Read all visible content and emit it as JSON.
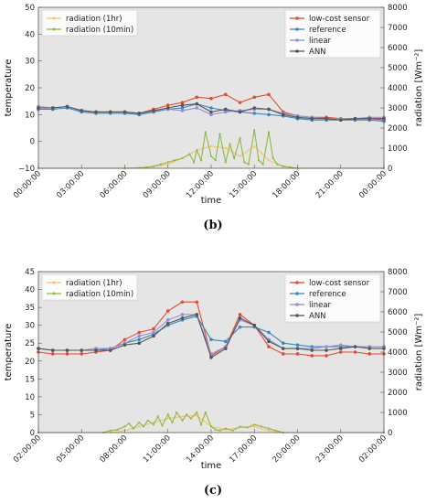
{
  "colors": {
    "low_cost_sensor": "#e24a33",
    "reference": "#348abd",
    "linear": "#988ed5",
    "ann": "#555555",
    "radiation_1hr": "#fbc15e",
    "radiation_10min": "#8eba42"
  },
  "chart_data": [
    {
      "type": "line",
      "caption": "(b)",
      "xlabel": "time",
      "ylabel": "temperature",
      "ylabel_right": "radiation [Wm⁻²]",
      "xlim": [
        0,
        24
      ],
      "ylim": [
        -10,
        50
      ],
      "ylim_right": [
        0,
        8000
      ],
      "x_ticks": [
        0,
        3,
        6,
        9,
        12,
        15,
        18,
        21,
        24
      ],
      "x_tick_labels": [
        "00:00:00",
        "03:00:00",
        "06:00:00",
        "09:00:00",
        "12:00:00",
        "15:00:00",
        "18:00:00",
        "21:00:00",
        "00:00:00"
      ],
      "y_ticks": [
        -10,
        0,
        10,
        20,
        30,
        40,
        50
      ],
      "y_tick_labels": [
        "−10",
        "0",
        "10",
        "20",
        "30",
        "40",
        "50"
      ],
      "y_ticks_right": [
        0,
        1000,
        2000,
        3000,
        4000,
        5000,
        6000,
        7000,
        8000
      ],
      "y_tick_labels_right": [
        "0",
        "1000",
        "2000",
        "3000",
        "4000",
        "5000",
        "6000",
        "7000",
        "8000"
      ],
      "legend_left": [
        "radiation (1hr)",
        "radiation (10min)"
      ],
      "legend_right": [
        "low-cost sensor",
        "reference",
        "linear",
        "ANN"
      ],
      "x": [
        0,
        1,
        2,
        3,
        4,
        5,
        6,
        7,
        8,
        9,
        10,
        11,
        12,
        13,
        14,
        15,
        16,
        17,
        18,
        19,
        20,
        21,
        22,
        23,
        24
      ],
      "series": [
        {
          "name": "low-cost sensor",
          "key": "low_cost_sensor",
          "values": [
            12.5,
            12.5,
            13,
            11.5,
            11,
            11,
            11,
            10.5,
            12,
            13.5,
            14.5,
            16.5,
            16,
            17.5,
            14.5,
            16.5,
            17.5,
            11,
            9.5,
            9,
            9,
            8.5,
            8.5,
            8.5,
            8
          ]
        },
        {
          "name": "reference",
          "key": "reference",
          "values": [
            12,
            12,
            12.5,
            11,
            10.5,
            10.5,
            10.5,
            10,
            11,
            12,
            12.5,
            14,
            12.5,
            11.5,
            11,
            10.5,
            10,
            9.5,
            8.5,
            8,
            8,
            8,
            8,
            8,
            7.5
          ]
        },
        {
          "name": "linear",
          "key": "linear",
          "values": [
            13,
            12.5,
            13,
            11.5,
            11,
            11,
            11,
            10.5,
            11.5,
            12,
            11.5,
            12.5,
            10,
            11,
            11.5,
            12,
            12,
            10.5,
            9.5,
            9,
            8.5,
            8.5,
            8.5,
            9,
            9
          ]
        },
        {
          "name": "ANN",
          "key": "ann",
          "values": [
            12.5,
            12.5,
            13,
            11.5,
            11,
            11,
            11,
            10.5,
            11.5,
            12.5,
            13.5,
            14,
            11,
            12,
            11,
            12.5,
            12,
            10,
            9,
            8.5,
            8.5,
            8,
            8.5,
            8.5,
            8.5
          ]
        }
      ],
      "radiation_1hr": {
        "x": [
          0,
          6,
          7,
          8,
          9,
          10,
          11,
          12,
          13,
          14,
          15,
          16,
          17,
          18,
          24
        ],
        "values": [
          0,
          0,
          20,
          80,
          200,
          500,
          900,
          1100,
          1000,
          600,
          1100,
          400,
          80,
          0,
          0
        ]
      },
      "radiation_10min": {
        "x": [
          0,
          6,
          7,
          7.5,
          8,
          8.5,
          9,
          9.5,
          10,
          10.5,
          10.8,
          11,
          11.3,
          11.6,
          12,
          12.3,
          12.6,
          13,
          13.3,
          13.6,
          14,
          14.3,
          14.6,
          15,
          15.3,
          15.6,
          16,
          16.3,
          16.6,
          17,
          17.5,
          18,
          24
        ],
        "values": [
          0,
          0,
          20,
          50,
          100,
          200,
          300,
          400,
          500,
          700,
          300,
          900,
          400,
          1800,
          600,
          400,
          1700,
          300,
          1200,
          500,
          1500,
          300,
          200,
          1900,
          400,
          200,
          1800,
          500,
          200,
          100,
          50,
          0,
          0
        ]
      }
    },
    {
      "type": "line",
      "caption": "(c)",
      "xlabel": "time",
      "ylabel": "temperature",
      "ylabel_right": "radiation [Wm⁻²]",
      "xlim": [
        2,
        26
      ],
      "ylim": [
        0,
        45
      ],
      "ylim_right": [
        0,
        8000
      ],
      "x_ticks": [
        2,
        5,
        8,
        11,
        14,
        17,
        20,
        23,
        26
      ],
      "x_tick_labels": [
        "02:00:00",
        "05:00:00",
        "08:00:00",
        "11:00:00",
        "14:00:00",
        "17:00:00",
        "20:00:00",
        "23:00:00",
        "02:00:00"
      ],
      "y_ticks": [
        0,
        5,
        10,
        15,
        20,
        25,
        30,
        35,
        40,
        45
      ],
      "y_tick_labels": [
        "0",
        "5",
        "10",
        "15",
        "20",
        "25",
        "30",
        "35",
        "40",
        "45"
      ],
      "y_ticks_right": [
        0,
        1000,
        2000,
        3000,
        4000,
        5000,
        6000,
        7000,
        8000
      ],
      "y_tick_labels_right": [
        "0",
        "1000",
        "2000",
        "3000",
        "4000",
        "5000",
        "6000",
        "7000",
        "8000"
      ],
      "legend_left": [
        "radiation (1hr)",
        "radiation (10min)"
      ],
      "legend_right": [
        "low-cost sensor",
        "reference",
        "linear",
        "ANN"
      ],
      "x": [
        2,
        3,
        4,
        5,
        6,
        7,
        8,
        9,
        10,
        11,
        12,
        13,
        14,
        15,
        16,
        17,
        18,
        19,
        20,
        21,
        22,
        23,
        24,
        25,
        26
      ],
      "series": [
        {
          "name": "low-cost sensor",
          "key": "low_cost_sensor",
          "values": [
            22.5,
            22,
            22,
            22,
            22.5,
            23,
            26,
            28,
            29,
            34,
            36.5,
            36.5,
            21.5,
            24,
            33,
            30,
            24,
            22,
            22,
            21.5,
            21.5,
            22.5,
            22.5,
            22,
            22
          ]
        },
        {
          "name": "reference",
          "key": "reference",
          "values": [
            23.5,
            23,
            23,
            23,
            23,
            23.5,
            25,
            26,
            27.5,
            30,
            31.5,
            32.5,
            26,
            25.5,
            29.5,
            29.5,
            28,
            25,
            24.5,
            24,
            24,
            24,
            24,
            24,
            24
          ]
        },
        {
          "name": "linear",
          "key": "linear",
          "values": [
            23.5,
            23,
            23,
            23,
            23.5,
            23.5,
            25,
            27,
            28,
            31.5,
            33,
            33,
            22,
            24,
            31.5,
            30,
            26,
            23.5,
            23.5,
            23.5,
            24,
            24.5,
            24,
            24,
            24
          ]
        },
        {
          "name": "ANN",
          "key": "ann",
          "values": [
            23.5,
            23,
            23,
            23,
            23,
            23,
            24.5,
            25,
            27,
            30.5,
            32,
            33,
            21,
            23.5,
            32,
            30,
            25.5,
            23.5,
            23.5,
            23,
            23,
            23.5,
            24,
            23.5,
            23.5
          ]
        }
      ],
      "radiation_1hr": {
        "x": [
          2,
          7,
          8,
          9,
          10,
          11,
          12,
          13,
          14,
          15,
          16,
          17,
          18,
          19,
          26
        ],
        "values": [
          0,
          0,
          100,
          300,
          500,
          700,
          800,
          850,
          300,
          150,
          250,
          300,
          100,
          0,
          0
        ]
      },
      "radiation_10min": {
        "x": [
          2,
          6.5,
          7,
          7.5,
          8,
          8.3,
          8.6,
          9,
          9.3,
          9.6,
          10,
          10.3,
          10.6,
          11,
          11.3,
          11.6,
          12,
          12.3,
          12.6,
          13,
          13.3,
          13.6,
          14,
          14.3,
          14.6,
          15,
          15.5,
          16,
          16.5,
          17,
          17.5,
          18,
          18.5,
          19,
          26
        ],
        "values": [
          0,
          0,
          100,
          150,
          300,
          450,
          200,
          500,
          300,
          600,
          400,
          800,
          350,
          900,
          500,
          1000,
          600,
          900,
          700,
          1000,
          400,
          1000,
          300,
          150,
          100,
          200,
          100,
          300,
          250,
          400,
          300,
          200,
          100,
          0,
          0
        ]
      }
    }
  ]
}
